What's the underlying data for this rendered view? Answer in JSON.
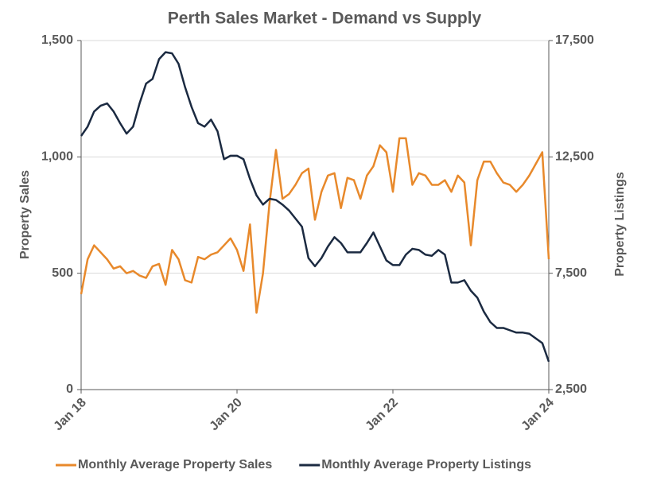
{
  "chart_data": {
    "type": "line",
    "title": "Perth Sales Market - Demand vs Supply",
    "ylabel": "Property Sales",
    "y2label": "Property Listings",
    "categories": [
      "Jan 18",
      null,
      null,
      null,
      null,
      null,
      null,
      null,
      null,
      null,
      null,
      null,
      null,
      null,
      null,
      null,
      null,
      null,
      null,
      null,
      null,
      null,
      null,
      null,
      "Jan 20",
      null,
      null,
      null,
      null,
      null,
      null,
      null,
      null,
      null,
      null,
      null,
      null,
      null,
      null,
      null,
      null,
      null,
      null,
      null,
      null,
      null,
      null,
      null,
      "Jan 22",
      null,
      null,
      null,
      null,
      null,
      null,
      null,
      null,
      null,
      null,
      null,
      null,
      null,
      null,
      null,
      null,
      null,
      null,
      null,
      null,
      null,
      null,
      null,
      "Jan 24"
    ],
    "series": [
      {
        "name": "Monthly Average Property Sales",
        "color": "#e8892b",
        "axis": "y",
        "values": [
          410,
          560,
          620,
          590,
          560,
          520,
          530,
          500,
          510,
          490,
          480,
          530,
          540,
          450,
          600,
          560,
          470,
          460,
          570,
          560,
          580,
          590,
          620,
          650,
          600,
          510,
          710,
          330,
          500,
          800,
          1030,
          820,
          840,
          880,
          930,
          950,
          730,
          850,
          920,
          930,
          780,
          910,
          900,
          820,
          920,
          960,
          1050,
          1020,
          850,
          1080,
          1080,
          880,
          930,
          920,
          880,
          880,
          900,
          850,
          920,
          890,
          620,
          900,
          980,
          980,
          930,
          890,
          880,
          850,
          880,
          920,
          970,
          1020,
          560
        ]
      },
      {
        "name": "Monthly Average Property Listings",
        "color": "#1b2a41",
        "axis": "y2",
        "values": [
          13400,
          13800,
          14450,
          14700,
          14800,
          14450,
          13950,
          13500,
          13800,
          14800,
          15650,
          15850,
          16700,
          17000,
          16950,
          16500,
          15500,
          14650,
          13950,
          13800,
          14100,
          13600,
          12400,
          12550,
          12550,
          12400,
          11550,
          10850,
          10450,
          10700,
          10650,
          10450,
          10200,
          9850,
          9500,
          8150,
          7800,
          8150,
          8650,
          9050,
          8800,
          8400,
          8400,
          8400,
          8800,
          9250,
          8650,
          8050,
          7850,
          7850,
          8300,
          8550,
          8500,
          8300,
          8250,
          8500,
          8300,
          7100,
          7100,
          7200,
          6750,
          6450,
          5850,
          5400,
          5150,
          5150,
          5050,
          4950,
          4950,
          4900,
          4700,
          4500,
          3700
        ]
      }
    ],
    "ylim": [
      0,
      1500
    ],
    "yticks": [
      0,
      500,
      {
        "value": 1000,
        "label": "1,000"
      },
      {
        "value": 1500,
        "label": "1,500"
      }
    ],
    "y2lim": [
      2500,
      17500
    ],
    "y2ticks": [
      {
        "value": 2500,
        "label": "2,500"
      },
      {
        "value": 7500,
        "label": "7,500"
      },
      {
        "value": 12500,
        "label": "12,500"
      },
      {
        "value": 17500,
        "label": "17,500"
      }
    ],
    "grid": true,
    "legend": "bottom"
  }
}
